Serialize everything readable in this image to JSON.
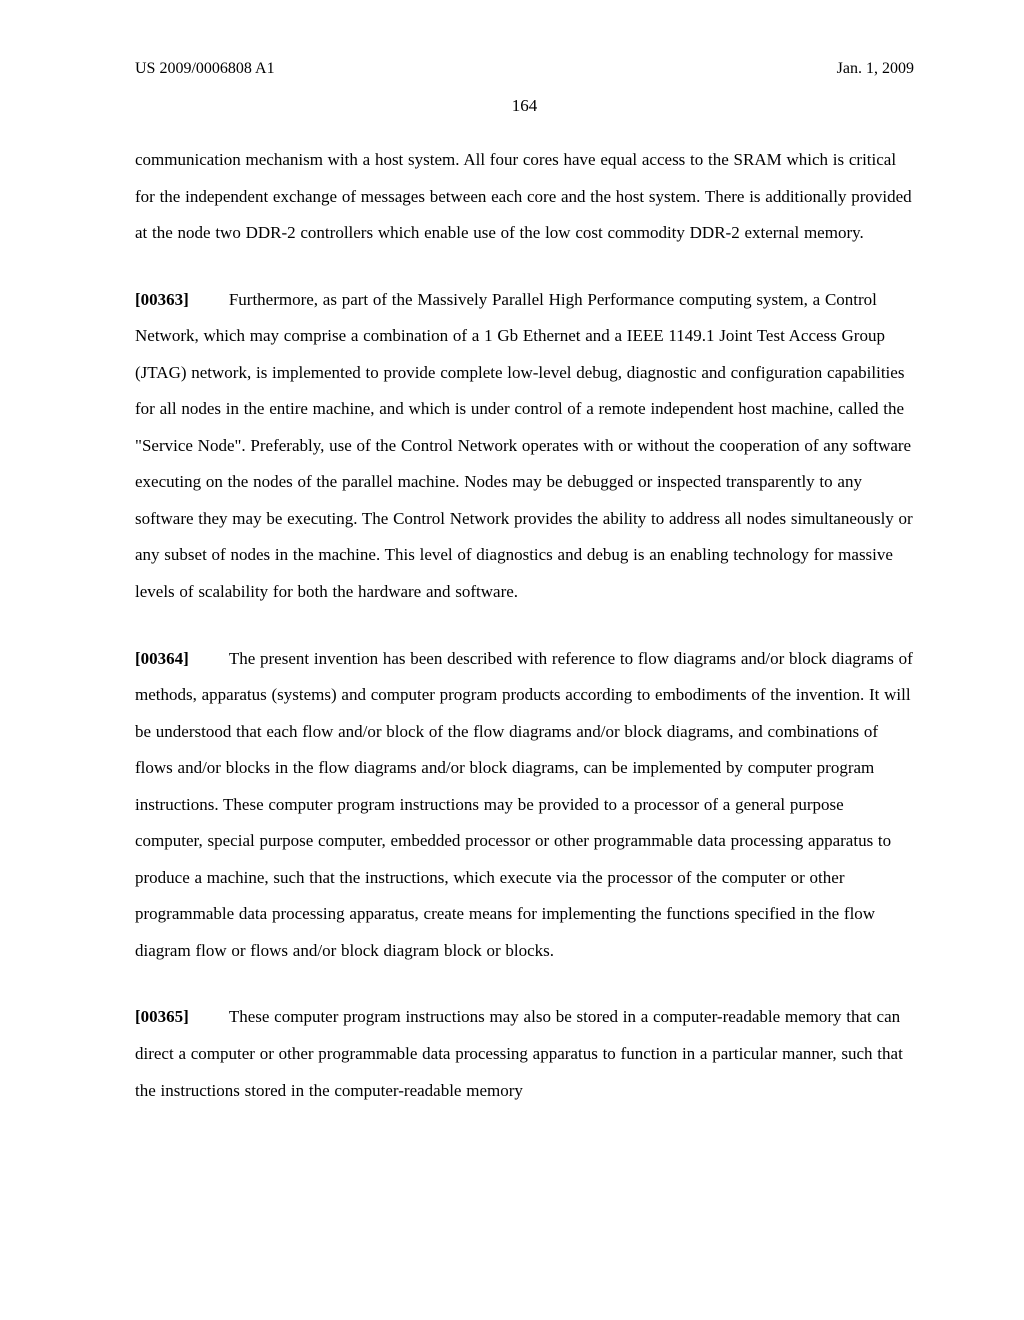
{
  "header": {
    "publication_number": "US 2009/0006808 A1",
    "date": "Jan. 1, 2009",
    "page_number": "164"
  },
  "paragraphs": {
    "p0_continuation": "communication mechanism with a host system. All four cores have equal access to the SRAM which is critical for the independent exchange of messages between each core and the host system. There is additionally provided at the node two DDR-2 controllers which enable use of the low cost commodity DDR-2 external memory.",
    "p1": {
      "num": "[00363]",
      "text": "Furthermore, as part of the Massively Parallel High Performance computing system, a Control Network, which may comprise a combination of a 1 Gb Ethernet and a IEEE 1149.1 Joint Test Access Group (JTAG) network, is implemented to provide complete low-level debug, diagnostic and configuration capabilities for all nodes in the entire machine, and which is under control of a remote independent host machine, called the \"Service Node\". Preferably, use of the Control Network operates with or without the cooperation of any software executing on the nodes of the parallel machine. Nodes may be debugged or inspected transparently to any software they may be executing. The Control Network provides the ability to address all nodes simultaneously or any subset of nodes in the machine. This level of diagnostics and debug is an enabling technology for massive levels of scalability for both the hardware and software."
    },
    "p2": {
      "num": "[00364]",
      "text": "The present invention has been described with reference to flow diagrams and/or block diagrams of methods, apparatus (systems) and computer program products according to embodiments of the invention. It will be understood that each flow and/or block of the flow diagrams and/or block diagrams, and combinations of flows and/or blocks in the flow diagrams and/or block diagrams, can be implemented by computer program instructions. These computer program instructions may be provided to a processor of a general purpose computer, special purpose computer, embedded processor or other programmable data processing apparatus to produce a machine, such that the instructions, which execute via the processor of the computer or other programmable data processing apparatus, create means for implementing the functions specified in the flow diagram flow or flows and/or block diagram block or blocks."
    },
    "p3": {
      "num": "[00365]",
      "text": "These computer program instructions may also be stored in a computer-readable memory that can direct a computer or other programmable data processing apparatus to function in a particular manner, such that the instructions stored in the computer-readable memory"
    }
  }
}
